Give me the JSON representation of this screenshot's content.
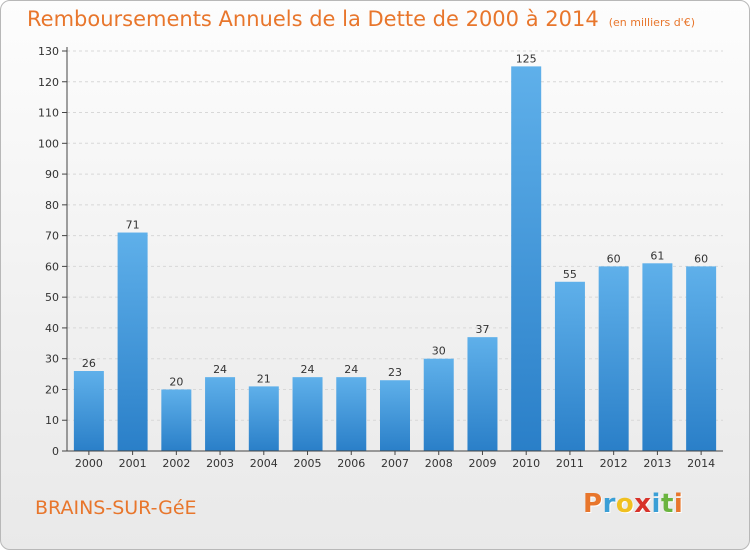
{
  "header": {
    "title": "Remboursements Annuels de la Dette de 2000 à 2014",
    "unit": "(en milliers d'€)"
  },
  "footer": {
    "city": "BRAINS-SUR-GéE",
    "logo_letters": [
      "P",
      "r",
      "o",
      "x",
      "i",
      "t",
      "i"
    ],
    "logo_colors": [
      "#e8762c",
      "#3a9fd6",
      "#f0c020",
      "#d8322a",
      "#3a9fd6",
      "#6bb43f",
      "#e8762c"
    ]
  },
  "chart_data": {
    "type": "bar",
    "title": "Remboursements Annuels de la Dette de 2000 à 2014",
    "categories": [
      "2000",
      "2001",
      "2002",
      "2003",
      "2004",
      "2005",
      "2006",
      "2007",
      "2008",
      "2009",
      "2010",
      "2011",
      "2012",
      "2013",
      "2014"
    ],
    "values": [
      26,
      71,
      20,
      24,
      21,
      24,
      24,
      23,
      30,
      37,
      125,
      55,
      60,
      61,
      60
    ],
    "ylim": [
      0,
      130
    ],
    "yticks": [
      0,
      10,
      20,
      30,
      40,
      50,
      60,
      70,
      80,
      90,
      100,
      110,
      120,
      130
    ],
    "grid": true,
    "colors": {
      "bar_light": "#5fb0ea",
      "bar_dark": "#2a7fc8",
      "axis": "#444444",
      "grid": "#d8d8d8"
    }
  }
}
